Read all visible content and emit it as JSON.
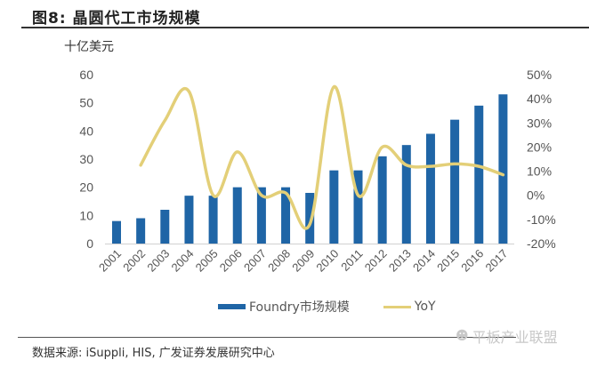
{
  "figure": {
    "title": "图8:  晶圆代工市场规模",
    "unit_label": "十亿美元",
    "source": "数据来源:  iSuppli,  HIS,  广发证券发展研究中心",
    "watermark": "平板产业联盟"
  },
  "colors": {
    "bar": "#1f65a6",
    "line": "#e3cf78",
    "axis": "#d0d0d0"
  },
  "chart_data": {
    "type": "bar+line",
    "title": "晶圆代工市场规模",
    "categories": [
      "2001",
      "2002",
      "2003",
      "2004",
      "2005",
      "2006",
      "2007",
      "2008",
      "2009",
      "2010",
      "2011",
      "2012",
      "2013",
      "2014",
      "2015",
      "2016",
      "2017"
    ],
    "series": [
      {
        "name": "Foundry市场规模",
        "type": "bar",
        "axis": "left",
        "values": [
          8,
          9,
          12,
          17,
          17,
          20,
          20,
          20,
          18,
          26,
          26,
          31,
          35,
          39,
          44,
          49,
          53
        ]
      },
      {
        "name": "YoY",
        "type": "line",
        "axis": "right",
        "values": [
          null,
          12.5,
          31,
          43,
          0,
          18,
          0,
          1,
          -12,
          45,
          0,
          20,
          12.5,
          12,
          13,
          12,
          8.5
        ]
      }
    ],
    "left_axis": {
      "label": "十亿美元",
      "ylim": [
        0,
        60
      ],
      "ticks": [
        0,
        10,
        20,
        30,
        40,
        50,
        60
      ]
    },
    "right_axis": {
      "ylim": [
        -20,
        50
      ],
      "ticks": [
        "-20%",
        "-10%",
        "0%",
        "10%",
        "20%",
        "30%",
        "40%",
        "50%"
      ]
    },
    "legend": {
      "placement": "bottom",
      "entries": [
        "Foundry市场规模",
        "YoY"
      ]
    },
    "grid": false
  }
}
